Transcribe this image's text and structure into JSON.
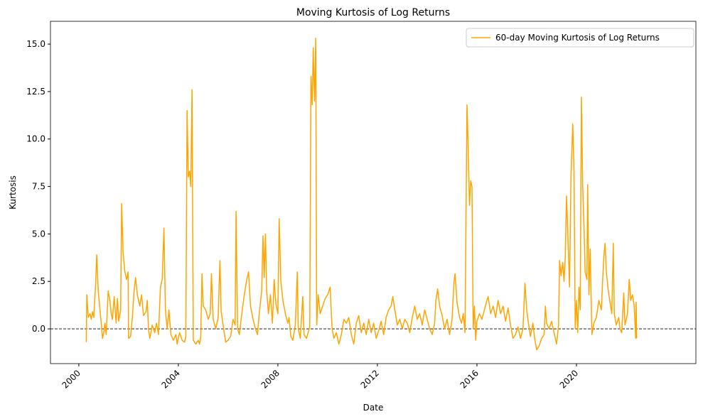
{
  "chart_data": {
    "type": "line",
    "title": "Moving Kurtosis of Log Returns",
    "xlabel": "Date",
    "ylabel": "Kurtosis",
    "xlim": [
      1998.86,
      2024.8
    ],
    "ylim": [
      -1.83,
      16.2
    ],
    "xticks": [
      2000,
      2004,
      2008,
      2012,
      2016,
      2020
    ],
    "yticks": [
      {
        "value": 0,
        "label": "0.0"
      },
      2.5,
      {
        "value": 5,
        "label": "5.0"
      },
      7.5,
      {
        "value": 10,
        "label": "10.0"
      },
      12.5,
      {
        "value": 15,
        "label": "15.0"
      }
    ],
    "hline": 0,
    "legend": "upper right",
    "series": [
      {
        "name": "60-day Moving Kurtosis of Log Returns",
        "color": "#ffa500",
        "x": [
          2000.3,
          2000.32,
          2000.38,
          2000.45,
          2000.5,
          2000.55,
          2000.6,
          2000.68,
          2000.72,
          2000.78,
          2000.85,
          2000.9,
          2000.95,
          2001.0,
          2001.05,
          2001.1,
          2001.18,
          2001.25,
          2001.3,
          2001.35,
          2001.42,
          2001.5,
          2001.55,
          2001.6,
          2001.68,
          2001.72,
          2001.78,
          2001.85,
          2001.92,
          2001.98,
          2002.0,
          2002.08,
          2002.15,
          2002.22,
          2002.28,
          2002.35,
          2002.45,
          2002.52,
          2002.6,
          2002.7,
          2002.75,
          2002.8,
          2002.85,
          2002.95,
          2003.05,
          2003.12,
          2003.2,
          2003.28,
          2003.35,
          2003.42,
          2003.48,
          2003.55,
          2003.62,
          2003.7,
          2003.8,
          2003.9,
          2003.95,
          2004.05,
          2004.15,
          2004.25,
          2004.3,
          2004.35,
          2004.4,
          2004.45,
          2004.5,
          2004.55,
          2004.6,
          2004.7,
          2004.8,
          2004.85,
          2004.9,
          2004.95,
          2005.0,
          2005.1,
          2005.2,
          2005.28,
          2005.33,
          2005.4,
          2005.5,
          2005.6,
          2005.67,
          2005.72,
          2005.8,
          2005.9,
          2006.0,
          2006.1,
          2006.2,
          2006.28,
          2006.32,
          2006.38,
          2006.45,
          2006.55,
          2006.65,
          2006.75,
          2006.82,
          2006.9,
          2007.0,
          2007.1,
          2007.18,
          2007.25,
          2007.35,
          2007.4,
          2007.45,
          2007.5,
          2007.55,
          2007.62,
          2007.7,
          2007.78,
          2007.85,
          2007.92,
          2008.0,
          2008.05,
          2008.12,
          2008.2,
          2008.3,
          2008.4,
          2008.45,
          2008.52,
          2008.6,
          2008.7,
          2008.78,
          2008.82,
          2008.9,
          2009.0,
          2009.05,
          2009.15,
          2009.28,
          2009.33,
          2009.38,
          2009.42,
          2009.47,
          2009.52,
          2009.56,
          2009.62,
          2009.7,
          2009.8,
          2009.9,
          2010.0,
          2010.1,
          2010.18,
          2010.25,
          2010.35,
          2010.45,
          2010.55,
          2010.65,
          2010.75,
          2010.85,
          2010.95,
          2011.05,
          2011.15,
          2011.25,
          2011.35,
          2011.45,
          2011.55,
          2011.65,
          2011.75,
          2011.85,
          2011.95,
          2012.05,
          2012.15,
          2012.25,
          2012.35,
          2012.45,
          2012.55,
          2012.62,
          2012.7,
          2012.8,
          2012.9,
          2013.0,
          2013.1,
          2013.2,
          2013.3,
          2013.4,
          2013.5,
          2013.6,
          2013.7,
          2013.8,
          2013.9,
          2014.0,
          2014.1,
          2014.2,
          2014.3,
          2014.35,
          2014.42,
          2014.5,
          2014.6,
          2014.7,
          2014.8,
          2014.9,
          2015.0,
          2015.08,
          2015.12,
          2015.2,
          2015.3,
          2015.38,
          2015.45,
          2015.52,
          2015.6,
          2015.65,
          2015.7,
          2015.75,
          2015.8,
          2015.85,
          2015.9,
          2015.95,
          2016.0,
          2016.1,
          2016.2,
          2016.3,
          2016.4,
          2016.45,
          2016.55,
          2016.65,
          2016.75,
          2016.85,
          2016.95,
          2017.05,
          2017.15,
          2017.25,
          2017.35,
          2017.45,
          2017.55,
          2017.65,
          2017.75,
          2017.85,
          2017.93,
          2018.0,
          2018.08,
          2018.15,
          2018.25,
          2018.32,
          2018.4,
          2018.5,
          2018.6,
          2018.7,
          2018.75,
          2018.8,
          2018.9,
          2019.0,
          2019.1,
          2019.2,
          2019.28,
          2019.32,
          2019.38,
          2019.45,
          2019.5,
          2019.55,
          2019.6,
          2019.65,
          2019.72,
          2019.78,
          2019.85,
          2019.9,
          2019.95,
          2020.0,
          2020.05,
          2020.1,
          2020.15,
          2020.2,
          2020.25,
          2020.3,
          2020.35,
          2020.42,
          2020.45,
          2020.5,
          2020.55,
          2020.62,
          2020.7,
          2020.8,
          2020.9,
          2021.0,
          2021.05,
          2021.1,
          2021.15,
          2021.2,
          2021.28,
          2021.35,
          2021.42,
          2021.48,
          2021.52,
          2021.6,
          2021.7,
          2021.75,
          2021.82,
          2021.9,
          2021.95,
          2022.05,
          2022.12,
          2022.18,
          2022.25,
          2022.32,
          2022.38,
          2022.4,
          2022.42
        ],
        "values": [
          -0.7,
          1.8,
          0.6,
          0.8,
          0.5,
          0.9,
          0.6,
          2.5,
          3.9,
          2.0,
          1.0,
          0.3,
          -0.5,
          -0.2,
          0.3,
          -0.3,
          2.0,
          1.5,
          0.8,
          0.5,
          1.7,
          0.3,
          1.6,
          0.4,
          1.0,
          6.6,
          4.0,
          3.0,
          2.6,
          3.0,
          -0.5,
          -0.4,
          0.6,
          2.0,
          2.7,
          1.8,
          1.2,
          1.8,
          0.7,
          0.9,
          1.5,
          0.0,
          -0.5,
          0.2,
          -0.2,
          0.3,
          -0.3,
          2.2,
          2.6,
          5.3,
          1.0,
          0.0,
          1.0,
          -0.3,
          -0.6,
          -0.3,
          -0.8,
          -0.2,
          -0.6,
          -0.7,
          -0.4,
          11.5,
          8.0,
          8.3,
          7.5,
          12.6,
          -0.6,
          -0.8,
          -0.6,
          -0.8,
          -0.4,
          2.9,
          1.2,
          1.0,
          0.5,
          0.8,
          2.9,
          0.5,
          0.0,
          0.6,
          3.6,
          0.9,
          0.2,
          -0.7,
          -0.6,
          -0.4,
          0.5,
          0.2,
          6.2,
          0.0,
          -0.3,
          0.8,
          1.8,
          2.6,
          3.0,
          1.2,
          0.5,
          0.0,
          -0.3,
          0.8,
          2.0,
          4.9,
          2.7,
          5.0,
          2.0,
          0.8,
          1.8,
          0.3,
          2.6,
          1.3,
          0.8,
          5.8,
          2.5,
          1.5,
          0.8,
          0.3,
          0.6,
          -0.4,
          -0.6,
          0.2,
          3.0,
          0.0,
          -0.5,
          1.7,
          -0.3,
          -0.5,
          0.1,
          13.3,
          11.8,
          14.8,
          12.0,
          15.3,
          0.2,
          1.8,
          0.8,
          1.2,
          1.6,
          1.8,
          2.2,
          0.0,
          -0.5,
          -0.2,
          -0.8,
          -0.3,
          0.5,
          0.3,
          0.6,
          -0.3,
          -0.8,
          0.3,
          0.7,
          -0.2,
          0.3,
          -0.3,
          0.5,
          -0.2,
          0.3,
          -0.5,
          -0.1,
          0.4,
          -0.3,
          0.6,
          1.0,
          1.2,
          1.7,
          1.0,
          0.2,
          0.5,
          0.0,
          0.5,
          0.3,
          -0.2,
          0.6,
          1.2,
          0.5,
          0.8,
          0.2,
          1.0,
          0.5,
          0.0,
          -0.3,
          0.3,
          1.5,
          2.1,
          1.2,
          0.7,
          0.0,
          0.5,
          -0.3,
          0.5,
          2.5,
          2.9,
          1.4,
          0.6,
          0.3,
          0.8,
          -0.2,
          11.8,
          9.5,
          6.5,
          7.8,
          7.5,
          0.0,
          1.2,
          -0.6,
          0.4,
          0.8,
          0.5,
          1.0,
          1.5,
          1.7,
          0.8,
          1.2,
          0.6,
          1.5,
          0.8,
          1.2,
          0.4,
          1.1,
          0.2,
          -0.5,
          -0.3,
          0.1,
          -0.5,
          0.0,
          2.4,
          1.0,
          0.2,
          -0.4,
          0.3,
          -0.5,
          -1.1,
          -0.9,
          -0.5,
          -0.3,
          1.2,
          0.3,
          0.0,
          0.4,
          -0.2,
          -0.8,
          0.2,
          3.6,
          2.8,
          3.5,
          2.5,
          3.8,
          7.0,
          5.2,
          2.2,
          8.0,
          10.8,
          8.5,
          0.0,
          1.5,
          -0.2,
          2.2,
          1.0,
          12.2,
          7.5,
          5.5,
          3.0,
          2.6,
          7.6,
          1.8,
          4.2,
          -0.3,
          0.3,
          0.6,
          1.5,
          1.0,
          2.5,
          3.8,
          4.5,
          3.0,
          2.0,
          1.4,
          0.8,
          4.5,
          0.8,
          0.2,
          0.6,
          0.0,
          -0.2,
          1.9,
          0.2,
          0.8,
          2.6,
          1.5,
          1.8,
          1.2,
          -0.5,
          1.4,
          -0.5
        ]
      }
    ]
  }
}
